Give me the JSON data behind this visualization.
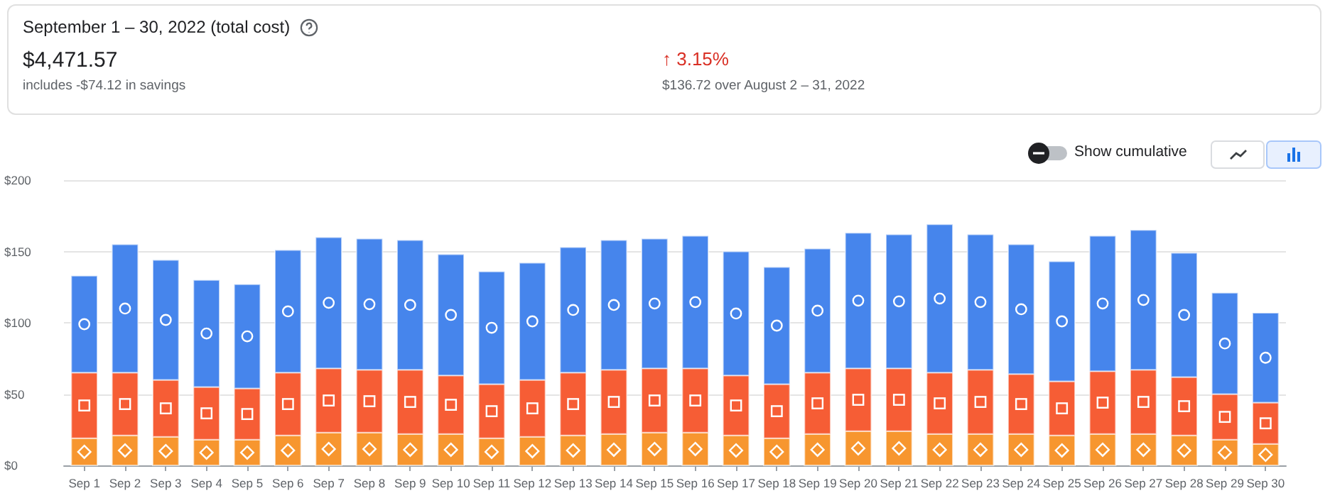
{
  "chart_data": {
    "type": "bar",
    "stacked": true,
    "title": "September 1 – 30, 2022 (total cost)",
    "annotations": [
      "$4,471.57",
      "includes -$74.12 in savings",
      "↑ 3.15%",
      "$136.72 over August 2 – 31, 2022",
      "Show cumulative"
    ],
    "categories": [
      "Sep 1",
      "Sep 2",
      "Sep 3",
      "Sep 4",
      "Sep 5",
      "Sep 6",
      "Sep 7",
      "Sep 8",
      "Sep 9",
      "Sep 10",
      "Sep 11",
      "Sep 12",
      "Sep 13",
      "Sep 14",
      "Sep 15",
      "Sep 16",
      "Sep 17",
      "Sep 18",
      "Sep 19",
      "Sep 20",
      "Sep 21",
      "Sep 22",
      "Sep 23",
      "Sep 24",
      "Sep 25",
      "Sep 26",
      "Sep 27",
      "Sep 28",
      "Sep 29",
      "Sep 30"
    ],
    "series": [
      {
        "color": "#f7962f",
        "marker": "diamond",
        "values": [
          19,
          21,
          20,
          18,
          18,
          21,
          23,
          23,
          22,
          22,
          19,
          20,
          21,
          22,
          23,
          23,
          21,
          19,
          22,
          24,
          24,
          22,
          22,
          22,
          21,
          22,
          22,
          21,
          18,
          15
        ]
      },
      {
        "color": "#f65d35",
        "marker": "square",
        "values": [
          46,
          44,
          40,
          37,
          36,
          44,
          45,
          44,
          45,
          41,
          38,
          40,
          44,
          45,
          45,
          45,
          42,
          38,
          43,
          44,
          44,
          43,
          45,
          42,
          38,
          44,
          45,
          41,
          32,
          29
        ]
      },
      {
        "color": "#4685ec",
        "marker": "circle",
        "values": [
          68,
          90,
          84,
          75,
          73,
          86,
          92,
          92,
          91,
          85,
          79,
          82,
          88,
          91,
          91,
          93,
          87,
          82,
          87,
          95,
          94,
          104,
          95,
          91,
          84,
          95,
          98,
          87,
          71,
          63
        ]
      }
    ],
    "ylim": [
      0,
      200
    ],
    "yticks": [
      {
        "value": 0,
        "label": "$0"
      },
      {
        "value": 50,
        "label": "$50"
      },
      {
        "value": 100,
        "label": "$100"
      },
      {
        "value": 150,
        "label": "$150"
      },
      {
        "value": 200,
        "label": "$200"
      }
    ],
    "grid": "y"
  }
}
